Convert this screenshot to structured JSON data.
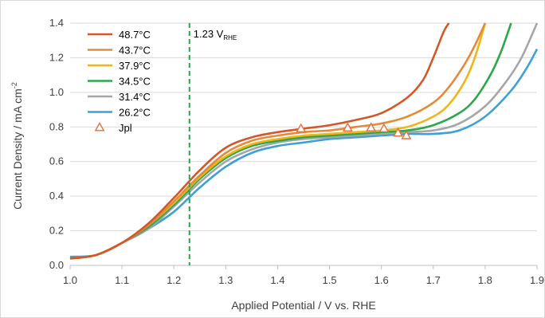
{
  "chart_data": {
    "type": "line",
    "xlabel": "Applied Potential / V vs. RHE",
    "ylabel": "Current Density / mA cm",
    "ylabel_sup": "-2",
    "xlim": [
      1.0,
      1.9
    ],
    "ylim": [
      0.0,
      1.4
    ],
    "xticks": [
      "1.0",
      "1.1",
      "1.2",
      "1.3",
      "1.4",
      "1.5",
      "1.6",
      "1.7",
      "1.8",
      "1.9"
    ],
    "yticks": [
      "0.0",
      "0.2",
      "0.4",
      "0.6",
      "0.8",
      "1.0",
      "1.2",
      "1.4"
    ],
    "grid": "horizontal",
    "legend_position": "top-left",
    "annotation": {
      "x": 1.23,
      "text": "1.23 V",
      "subscript": "RHE",
      "color": "#22a84a"
    },
    "series": [
      {
        "name": "48.7°C",
        "color": "#d4572a",
        "x": [
          1.0,
          1.05,
          1.1,
          1.15,
          1.2,
          1.25,
          1.3,
          1.35,
          1.4,
          1.45,
          1.5,
          1.55,
          1.6,
          1.65,
          1.68,
          1.7,
          1.72,
          1.73
        ],
        "y": [
          0.04,
          0.06,
          0.13,
          0.24,
          0.39,
          0.55,
          0.68,
          0.74,
          0.77,
          0.79,
          0.81,
          0.84,
          0.88,
          0.97,
          1.07,
          1.2,
          1.35,
          1.4
        ]
      },
      {
        "name": "43.7°C",
        "color": "#e58a3a",
        "x": [
          1.0,
          1.05,
          1.1,
          1.15,
          1.2,
          1.25,
          1.3,
          1.35,
          1.4,
          1.45,
          1.5,
          1.55,
          1.6,
          1.65,
          1.7,
          1.73,
          1.76,
          1.78,
          1.8
        ],
        "y": [
          0.04,
          0.06,
          0.13,
          0.23,
          0.37,
          0.52,
          0.65,
          0.72,
          0.75,
          0.77,
          0.78,
          0.8,
          0.82,
          0.86,
          0.94,
          1.03,
          1.16,
          1.27,
          1.4
        ]
      },
      {
        "name": "37.9°C",
        "color": "#f2b416",
        "x": [
          1.0,
          1.05,
          1.1,
          1.15,
          1.2,
          1.25,
          1.3,
          1.35,
          1.4,
          1.45,
          1.5,
          1.55,
          1.6,
          1.65,
          1.7,
          1.73,
          1.76,
          1.78,
          1.8
        ],
        "y": [
          0.04,
          0.06,
          0.13,
          0.23,
          0.36,
          0.51,
          0.63,
          0.7,
          0.73,
          0.75,
          0.76,
          0.77,
          0.78,
          0.8,
          0.86,
          0.93,
          1.06,
          1.2,
          1.4
        ]
      },
      {
        "name": "34.5°C",
        "color": "#2aa84a",
        "x": [
          1.0,
          1.05,
          1.1,
          1.15,
          1.2,
          1.25,
          1.3,
          1.35,
          1.4,
          1.45,
          1.5,
          1.55,
          1.6,
          1.65,
          1.7,
          1.75,
          1.78,
          1.81,
          1.83,
          1.85
        ],
        "y": [
          0.04,
          0.06,
          0.13,
          0.22,
          0.35,
          0.5,
          0.62,
          0.69,
          0.72,
          0.74,
          0.75,
          0.76,
          0.77,
          0.78,
          0.81,
          0.88,
          0.96,
          1.1,
          1.23,
          1.4
        ]
      },
      {
        "name": "31.4°C",
        "color": "#a6a6a6",
        "x": [
          1.0,
          1.05,
          1.1,
          1.15,
          1.2,
          1.25,
          1.3,
          1.35,
          1.4,
          1.45,
          1.5,
          1.55,
          1.6,
          1.65,
          1.7,
          1.75,
          1.8,
          1.84,
          1.87,
          1.9
        ],
        "y": [
          0.04,
          0.06,
          0.13,
          0.21,
          0.34,
          0.48,
          0.6,
          0.67,
          0.71,
          0.73,
          0.74,
          0.75,
          0.76,
          0.77,
          0.78,
          0.82,
          0.92,
          1.06,
          1.2,
          1.4
        ]
      },
      {
        "name": "26.2°C",
        "color": "#3da1d8",
        "x": [
          1.0,
          1.05,
          1.1,
          1.15,
          1.2,
          1.25,
          1.3,
          1.35,
          1.4,
          1.45,
          1.5,
          1.55,
          1.6,
          1.65,
          1.7,
          1.75,
          1.8,
          1.85,
          1.88,
          1.9
        ],
        "y": [
          0.05,
          0.06,
          0.13,
          0.21,
          0.31,
          0.45,
          0.57,
          0.65,
          0.69,
          0.71,
          0.73,
          0.74,
          0.75,
          0.76,
          0.76,
          0.78,
          0.86,
          1.01,
          1.14,
          1.25
        ]
      }
    ],
    "markers": {
      "name": "Jpl",
      "symbol": "triangle-open",
      "color": "#e5703a",
      "x": [
        1.445,
        1.535,
        1.58,
        1.605,
        1.632,
        1.648
      ],
      "y": [
        0.79,
        0.795,
        0.795,
        0.79,
        0.765,
        0.75
      ]
    }
  }
}
